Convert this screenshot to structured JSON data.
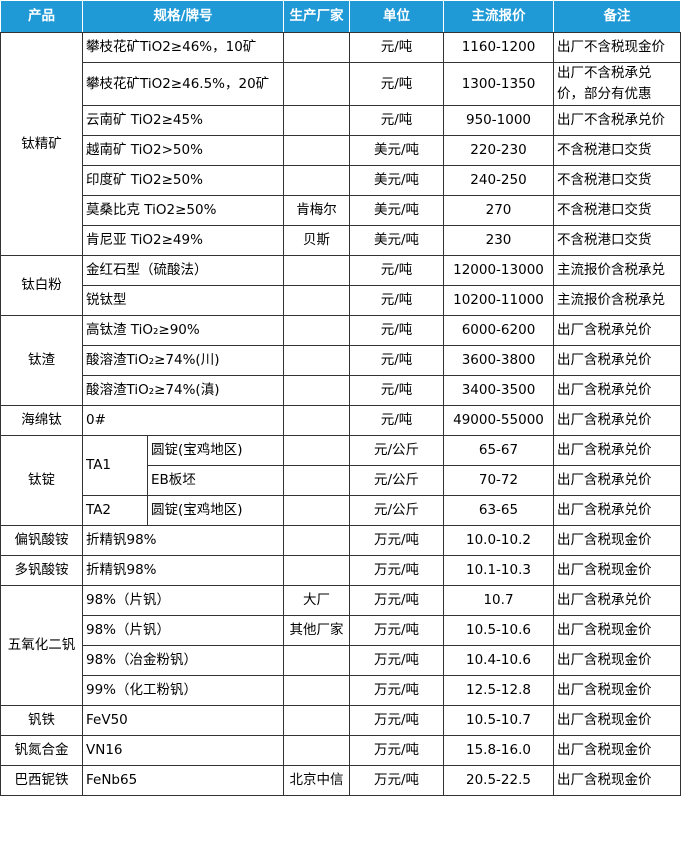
{
  "table": {
    "header": [
      "产品",
      "规格/牌号",
      "生产厂家",
      "单位",
      "主流报价",
      "备注"
    ],
    "groups": [
      {
        "product": "钛精矿",
        "rows": [
          {
            "spec": "攀枝花矿TiO2≥46%，10矿",
            "unit": "元/吨",
            "price": "1160-1200",
            "note": "出厂不含税现金价"
          },
          {
            "spec": "攀枝花矿TiO2≥46.5%，20矿",
            "unit": "元/吨",
            "price": "1300-1350",
            "note": "出厂不含税承兑价，部分有优惠"
          },
          {
            "spec": "云南矿 TiO2≥45%",
            "unit": "元/吨",
            "price": "950-1000",
            "note": "出厂不含税承兑价"
          },
          {
            "spec": "越南矿 TiO2>50%",
            "unit": "美元/吨",
            "price": "220-230",
            "note": "不含税港口交货"
          },
          {
            "spec": "印度矿 TiO2≥50%",
            "unit": "美元/吨",
            "price": "240-250",
            "note": "不含税港口交货"
          },
          {
            "spec": "莫桑比克 TiO2≥50%",
            "maker": "肯梅尔",
            "unit": "美元/吨",
            "price": "270",
            "note": "不含税港口交货"
          },
          {
            "spec": "肯尼亚 TiO2≥49%",
            "maker": "贝斯",
            "unit": "美元/吨",
            "price": "230",
            "note": "不含税港口交货"
          }
        ]
      },
      {
        "product": "钛白粉",
        "rows": [
          {
            "spec": "金红石型（硫酸法）",
            "unit": "元/吨",
            "price": "12000-13000",
            "note": "主流报价含税承兑"
          },
          {
            "spec": "锐钛型",
            "unit": "元/吨",
            "price": "10200-11000",
            "note": "主流报价含税承兑"
          }
        ]
      },
      {
        "product": "钛渣",
        "rows": [
          {
            "spec": "高钛渣 TiO₂≥90%",
            "unit": "元/吨",
            "price": "6000-6200",
            "note": "出厂含税承兑价"
          },
          {
            "spec": "酸溶渣TiO₂≥74%(川)",
            "unit": "元/吨",
            "price": "3600-3800",
            "note": "出厂含税承兑价"
          },
          {
            "spec": "酸溶渣TiO₂≥74%(滇)",
            "unit": "元/吨",
            "price": "3400-3500",
            "note": "出厂含税承兑价"
          }
        ]
      },
      {
        "product": "海绵钛",
        "rows": [
          {
            "spec": "0#",
            "unit": "元/吨",
            "price": "49000-55000",
            "note": "出厂含税承兑价"
          }
        ]
      },
      {
        "product": "钛锭",
        "rows": [
          {
            "grade": "TA1",
            "spec": "圆锭(宝鸡地区)",
            "unit": "元/公斤",
            "price": "65-67",
            "note": "出厂含税承兑价"
          },
          {
            "spec": "EB板坯",
            "unit": "元/公斤",
            "price": "70-72",
            "note": "出厂含税承兑价"
          },
          {
            "grade": "TA2",
            "spec": "圆锭(宝鸡地区)",
            "unit": "元/公斤",
            "price": "63-65",
            "note": "出厂含税承兑价"
          }
        ]
      },
      {
        "product": "偏钒酸铵",
        "rows": [
          {
            "spec": "折精钒98%",
            "unit": "万元/吨",
            "price": "10.0-10.2",
            "note": "出厂含税现金价"
          }
        ]
      },
      {
        "product": "多钒酸铵",
        "rows": [
          {
            "spec": "折精钒98%",
            "unit": "万元/吨",
            "price": "10.1-10.3",
            "note": "出厂含税现金价"
          }
        ]
      },
      {
        "product": "五氧化二钒",
        "rows": [
          {
            "spec": "98%（片钒）",
            "maker": "大厂",
            "unit": "万元/吨",
            "price": "10.7",
            "note": "出厂含税承兑价"
          },
          {
            "spec": "98%（片钒）",
            "maker": "其他厂家",
            "unit": "万元/吨",
            "price": "10.5-10.6",
            "note": "出厂含税现金价"
          },
          {
            "spec": "98%（冶金粉钒）",
            "unit": "万元/吨",
            "price": "10.4-10.6",
            "note": "出厂含税现金价"
          },
          {
            "spec": "99%（化工粉钒）",
            "unit": "万元/吨",
            "price": "12.5-12.8",
            "note": "出厂含税现金价"
          }
        ]
      },
      {
        "product": "钒铁",
        "rows": [
          {
            "spec": "FeV50",
            "unit": "万元/吨",
            "price": "10.5-10.7",
            "note": "出厂含税现金价"
          }
        ]
      },
      {
        "product": "钒氮合金",
        "rows": [
          {
            "spec": "VN16",
            "unit": "万元/吨",
            "price": "15.8-16.0",
            "note": "出厂含税现金价"
          }
        ]
      },
      {
        "product": "巴西铌铁",
        "rows": [
          {
            "spec": "FeNb65",
            "maker": "北京中信",
            "unit": "万元/吨",
            "price": "20.5-22.5",
            "note": "出厂含税现金价"
          }
        ]
      }
    ]
  }
}
